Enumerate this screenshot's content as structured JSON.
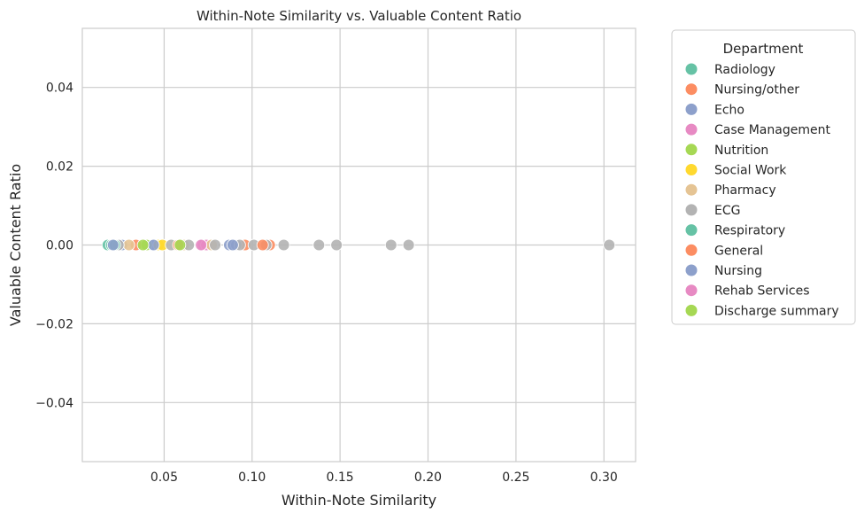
{
  "chart_data": {
    "type": "scatter",
    "title": "Within-Note Similarity vs. Valuable Content Ratio",
    "xlabel": "Within-Note Similarity",
    "ylabel": "Valuable Content Ratio",
    "xlim": [
      0.0035,
      0.318
    ],
    "ylim": [
      -0.055,
      0.055
    ],
    "xticks": [
      0.05,
      0.1,
      0.15,
      0.2,
      0.25,
      0.3
    ],
    "xtick_labels": [
      "0.05",
      "0.10",
      "0.15",
      "0.20",
      "0.25",
      "0.30"
    ],
    "yticks": [
      -0.04,
      -0.02,
      0.0,
      0.02,
      0.04
    ],
    "ytick_labels": [
      "−0.04",
      "−0.02",
      "0.00",
      "0.02",
      "0.04"
    ],
    "grid": true,
    "legend": {
      "title": "Department",
      "placement": "outside-right"
    },
    "series": [
      {
        "name": "Radiology",
        "color": "#66c2a5",
        "x": [
          0.018,
          0.02
        ],
        "y": [
          0,
          0
        ]
      },
      {
        "name": "Nursing/other",
        "color": "#fc8d62",
        "x": [
          0.034,
          0.096,
          0.11
        ],
        "y": [
          0,
          0,
          0
        ]
      },
      {
        "name": "Echo",
        "color": "#8da0cb",
        "x": [
          0.026,
          0.043,
          0.087,
          0.091
        ],
        "y": [
          0,
          0,
          0,
          0
        ]
      },
      {
        "name": "Case Management",
        "color": "#e78ac3",
        "x": [
          0.072,
          0.074
        ],
        "y": [
          0,
          0
        ]
      },
      {
        "name": "Nutrition",
        "color": "#a6d854",
        "x": [
          0.04,
          0.057
        ],
        "y": [
          0,
          0
        ]
      },
      {
        "name": "Social Work",
        "color": "#ffd92f",
        "x": [
          0.047,
          0.049
        ],
        "y": [
          0,
          0
        ]
      },
      {
        "name": "Pharmacy",
        "color": "#e5c494",
        "x": [
          0.03,
          0.061,
          0.077
        ],
        "y": [
          0,
          0,
          0
        ]
      },
      {
        "name": "ECG",
        "color": "#b3b3b3",
        "x": [
          0.024,
          0.054,
          0.064,
          0.079,
          0.093,
          0.101,
          0.108,
          0.118,
          0.138,
          0.148,
          0.179,
          0.189,
          0.303
        ],
        "y": [
          0,
          0,
          0,
          0,
          0,
          0,
          0,
          0,
          0,
          0,
          0,
          0,
          0
        ]
      },
      {
        "name": "Respiratory",
        "color": "#66c2a5",
        "x": [
          0.022
        ],
        "y": [
          0
        ]
      },
      {
        "name": "General",
        "color": "#fc8d62",
        "x": [
          0.058,
          0.106
        ],
        "y": [
          0,
          0
        ]
      },
      {
        "name": "Nursing",
        "color": "#8da0cb",
        "x": [
          0.021,
          0.044,
          0.089
        ],
        "y": [
          0,
          0,
          0
        ]
      },
      {
        "name": "Rehab Services",
        "color": "#e78ac3",
        "x": [
          0.071
        ],
        "y": [
          0
        ]
      },
      {
        "name": "Discharge summary",
        "color": "#a6d854",
        "x": [
          0.038,
          0.059
        ],
        "y": [
          0,
          0
        ]
      }
    ]
  }
}
